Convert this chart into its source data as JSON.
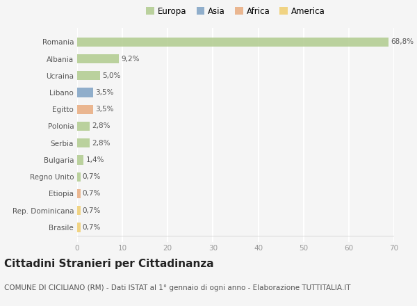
{
  "countries": [
    "Romania",
    "Albania",
    "Ucraina",
    "Libano",
    "Egitto",
    "Polonia",
    "Serbia",
    "Bulgaria",
    "Regno Unito",
    "Etiopia",
    "Rep. Dominicana",
    "Brasile"
  ],
  "values": [
    68.8,
    9.2,
    5.0,
    3.5,
    3.5,
    2.8,
    2.8,
    1.4,
    0.7,
    0.7,
    0.7,
    0.7
  ],
  "labels": [
    "68,8%",
    "9,2%",
    "5,0%",
    "3,5%",
    "3,5%",
    "2,8%",
    "2,8%",
    "1,4%",
    "0,7%",
    "0,7%",
    "0,7%",
    "0,7%"
  ],
  "colors": [
    "#aec98a",
    "#aec98a",
    "#aec98a",
    "#7a9fc2",
    "#e8a97a",
    "#aec98a",
    "#aec98a",
    "#aec98a",
    "#aec98a",
    "#e8a97a",
    "#f0cc6a",
    "#f0cc6a"
  ],
  "legend_labels": [
    "Europa",
    "Asia",
    "Africa",
    "America"
  ],
  "legend_colors": [
    "#aec98a",
    "#7a9fc2",
    "#e8a97a",
    "#f0cc6a"
  ],
  "title": "Cittadini Stranieri per Cittadinanza",
  "subtitle": "COMUNE DI CICILIANO (RM) - Dati ISTAT al 1° gennaio di ogni anno - Elaborazione TUTTITALIA.IT",
  "xlim": [
    0,
    70
  ],
  "xticks": [
    0,
    10,
    20,
    30,
    40,
    50,
    60,
    70
  ],
  "background_color": "#f5f5f5",
  "grid_color": "#ffffff",
  "bar_height": 0.55,
  "title_fontsize": 11,
  "subtitle_fontsize": 7.5,
  "label_fontsize": 7.5,
  "tick_fontsize": 7.5,
  "legend_fontsize": 8.5
}
